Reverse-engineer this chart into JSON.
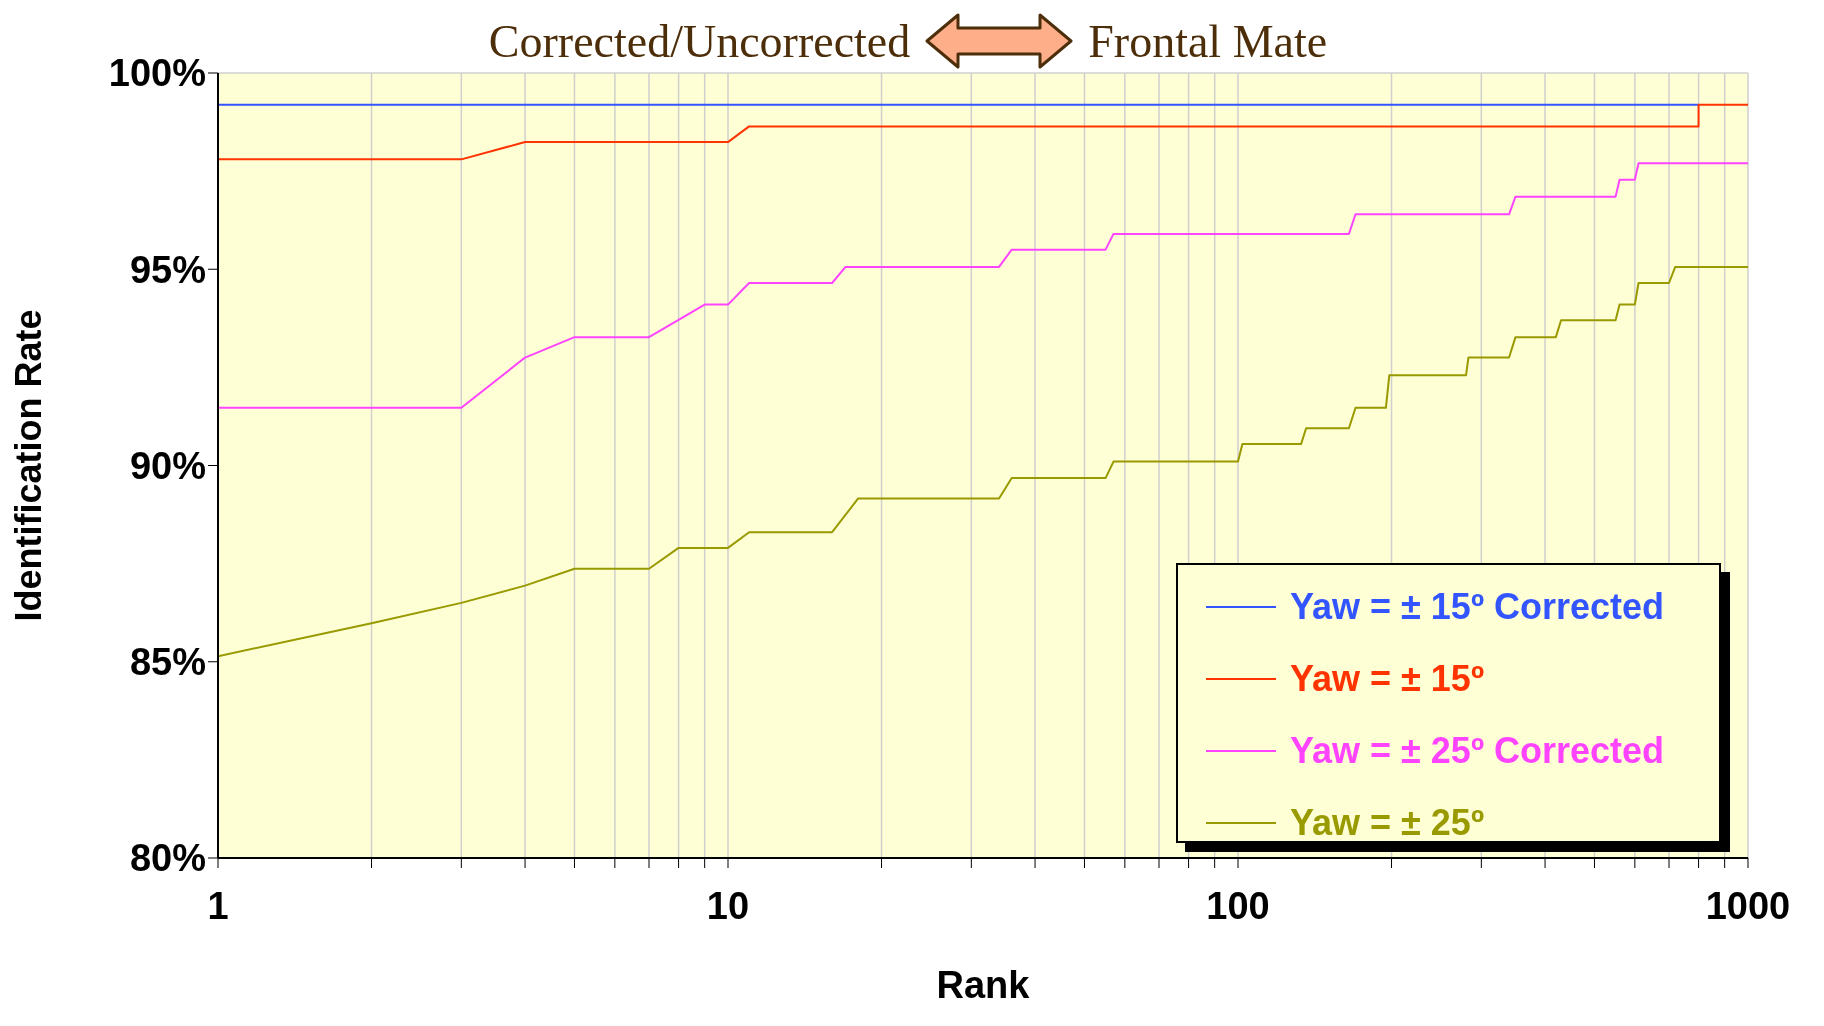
{
  "chart_data": {
    "type": "line",
    "title": "Corrected/Uncorrected",
    "subtitle": "Frontal Mate",
    "xlabel": "Rank",
    "ylabel": "Identification Rate",
    "log": "x",
    "grid": true,
    "legend": "bottom right",
    "marker": "none",
    "line_style": "solid",
    "xlim": [
      1,
      1000
    ],
    "xticks": [
      1,
      {
        "value": 2,
        "label": null
      },
      {
        "value": 3,
        "label": null
      },
      {
        "value": 4,
        "label": null
      },
      {
        "value": 5,
        "label": null
      },
      {
        "value": 6,
        "label": null
      },
      {
        "value": 7,
        "label": null
      },
      {
        "value": 8,
        "label": null
      },
      {
        "value": 9,
        "label": null
      },
      10,
      {
        "value": 20,
        "label": null
      },
      {
        "value": 30,
        "label": null
      },
      {
        "value": 40,
        "label": null
      },
      {
        "value": 50,
        "label": null
      },
      {
        "value": 60,
        "label": null
      },
      {
        "value": 70,
        "label": null
      },
      {
        "value": 80,
        "label": null
      },
      {
        "value": 90,
        "label": null
      },
      100,
      {
        "value": 200,
        "label": null
      },
      {
        "value": 300,
        "label": null
      },
      {
        "value": 400,
        "label": null
      },
      {
        "value": 500,
        "label": null
      },
      {
        "value": 600,
        "label": null
      },
      {
        "value": 700,
        "label": null
      },
      {
        "value": 800,
        "label": null
      },
      {
        "value": 900,
        "label": null
      },
      1000
    ],
    "ylim": [
      80,
      100
    ],
    "yticks": [
      {
        "value": 80,
        "label": "80%"
      },
      {
        "value": 85,
        "label": "85%"
      },
      {
        "value": 90,
        "label": "90%"
      },
      {
        "value": 95,
        "label": "95%"
      },
      {
        "value": 100,
        "label": "100%"
      }
    ],
    "series": [
      {
        "name": "Yaw = ± 15º Corrected",
        "color": "#3355ff",
        "x": [
          1,
          800
        ],
        "values": [
          99.19,
          99.19
        ]
      },
      {
        "name": "Yaw = ± 15º",
        "color": "#ff3300",
        "x": [
          1,
          3,
          4,
          10,
          11,
          800,
          800,
          1000
        ],
        "values": [
          97.8,
          97.8,
          98.24,
          98.24,
          98.64,
          98.64,
          99.19,
          99.19
        ]
      },
      {
        "name": "Yaw = ± 25º Corrected",
        "color": "#ff44ff",
        "x": [
          1,
          3,
          4,
          5,
          7,
          9,
          10,
          11,
          16,
          17,
          34,
          36,
          55,
          57,
          165,
          170,
          340,
          350,
          550,
          560,
          600,
          610,
          1000
        ],
        "values": [
          91.47,
          91.47,
          92.75,
          93.27,
          93.27,
          94.1,
          94.1,
          94.65,
          94.65,
          95.06,
          95.06,
          95.5,
          95.5,
          95.9,
          95.9,
          96.4,
          96.4,
          96.85,
          96.85,
          97.28,
          97.28,
          97.7,
          97.7
        ]
      },
      {
        "name": "Yaw = ± 25º",
        "color": "#999900",
        "x": [
          1,
          2,
          3,
          4,
          5,
          7,
          8,
          10,
          11,
          16,
          18,
          34,
          36,
          55,
          57,
          100,
          102,
          133,
          136,
          165,
          170,
          195,
          198,
          280,
          283,
          340,
          350,
          420,
          430,
          550,
          560,
          600,
          610,
          700,
          720,
          1000
        ],
        "values": [
          85.14,
          85.98,
          86.5,
          86.94,
          87.37,
          87.37,
          87.9,
          87.9,
          88.3,
          88.3,
          89.16,
          89.16,
          89.68,
          89.68,
          90.1,
          90.1,
          90.55,
          90.55,
          90.95,
          90.95,
          91.47,
          91.47,
          92.3,
          92.3,
          92.75,
          92.75,
          93.27,
          93.27,
          93.7,
          93.7,
          94.1,
          94.1,
          94.65,
          94.65,
          95.06,
          95.06
        ]
      }
    ]
  }
}
